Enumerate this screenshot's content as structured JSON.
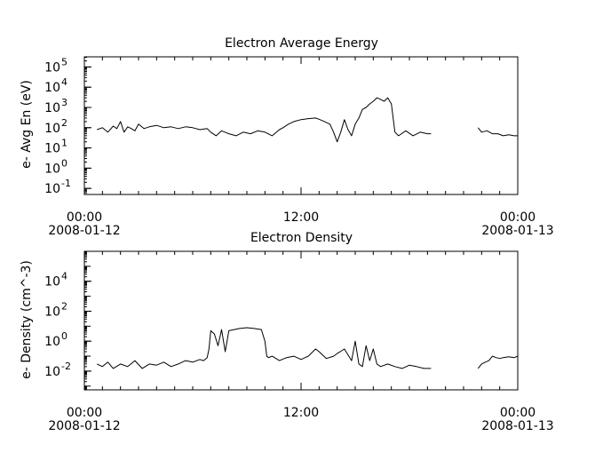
{
  "chart_data": [
    {
      "type": "line",
      "title": "Electron Average Energy",
      "ylabel": "e- Avg En (eV)",
      "xlabel": "",
      "yscale": "log",
      "ylim_exp": [
        -1.3,
        5.5
      ],
      "y_ticks": [
        {
          "exp": -1,
          "label": "10",
          "sup": "-1"
        },
        {
          "exp": 0,
          "label": "10",
          "sup": "0"
        },
        {
          "exp": 1,
          "label": "10",
          "sup": "1"
        },
        {
          "exp": 2,
          "label": "10",
          "sup": "2"
        },
        {
          "exp": 3,
          "label": "10",
          "sup": "3"
        },
        {
          "exp": 4,
          "label": "10",
          "sup": "4"
        },
        {
          "exp": 5,
          "label": "10",
          "sup": "5"
        }
      ],
      "x_ticks": [
        {
          "hour": 0,
          "time": "00:00",
          "date": "2008-01-12"
        },
        {
          "hour": 12,
          "time": "12:00",
          "date": ""
        },
        {
          "hour": 24,
          "time": "00:00",
          "date": "2008-01-13"
        }
      ],
      "xlim_hours": [
        0,
        24
      ],
      "grid": false,
      "series": [
        {
          "color": "#000000",
          "segments": [
            {
              "x": [
                0.7,
                1.0,
                1.3,
                1.6,
                1.8,
                2.0,
                2.2,
                2.4,
                2.6,
                2.8,
                3.0,
                3.3,
                3.6,
                4.0,
                4.4,
                4.8,
                5.2,
                5.6,
                6.0,
                6.4,
                6.8,
                7.0,
                7.3,
                7.6,
                8.0,
                8.4,
                8.8,
                9.2,
                9.6,
                10.0,
                10.4,
                10.8,
                11.0,
                11.3,
                11.6,
                12.0,
                12.4,
                12.8,
                13.0,
                13.3,
                13.6,
                13.8,
                14.0,
                14.2,
                14.4,
                14.6,
                14.8,
                15.0,
                15.2,
                15.4,
                15.6,
                15.8,
                16.0,
                16.2,
                16.4,
                16.6,
                16.8,
                17.0,
                17.2,
                17.4,
                17.8,
                18.2,
                18.6,
                19.0,
                19.2
              ],
              "y": [
                80,
                100,
                60,
                120,
                90,
                200,
                60,
                110,
                90,
                70,
                150,
                90,
                110,
                130,
                100,
                110,
                90,
                110,
                100,
                80,
                90,
                60,
                40,
                70,
                50,
                40,
                60,
                50,
                70,
                60,
                40,
                80,
                100,
                150,
                200,
                250,
                280,
                300,
                260,
                200,
                150,
                60,
                20,
                60,
                250,
                80,
                40,
                150,
                300,
                800,
                1000,
                1500,
                2000,
                3000,
                2500,
                2000,
                3000,
                1500,
                60,
                40,
                70,
                40,
                60,
                50,
                50
              ]
            },
            {
              "x": [
                21.8,
                22.0,
                22.3,
                22.6,
                22.9,
                23.2,
                23.5,
                23.8,
                24.0
              ],
              "y": [
                100,
                60,
                70,
                50,
                50,
                40,
                45,
                40,
                40
              ]
            }
          ]
        }
      ]
    },
    {
      "type": "line",
      "title": "Electron Density",
      "ylabel": "e- Density (cm^-3)",
      "xlabel": "",
      "yscale": "log",
      "ylim_exp": [
        -3.25,
        6.0
      ],
      "y_ticks": [
        {
          "exp": -2,
          "label": "10",
          "sup": "-2"
        },
        {
          "exp": 0,
          "label": "10",
          "sup": "0"
        },
        {
          "exp": 2,
          "label": "10",
          "sup": "2"
        },
        {
          "exp": 4,
          "label": "10",
          "sup": "4"
        }
      ],
      "x_ticks": [
        {
          "hour": 0,
          "time": "00:00",
          "date": "2008-01-12"
        },
        {
          "hour": 12,
          "time": "12:00",
          "date": ""
        },
        {
          "hour": 24,
          "time": "00:00",
          "date": "2008-01-13"
        }
      ],
      "xlim_hours": [
        0,
        24
      ],
      "grid": false,
      "series": [
        {
          "color": "#000000",
          "segments": [
            {
              "x": [
                0.7,
                1.0,
                1.3,
                1.6,
                2.0,
                2.4,
                2.8,
                3.2,
                3.6,
                4.0,
                4.4,
                4.8,
                5.2,
                5.6,
                6.0,
                6.4,
                6.6,
                6.8,
                6.9,
                7.0,
                7.2,
                7.4,
                7.6,
                7.8,
                8.0,
                8.3,
                8.6,
                9.0,
                9.4,
                9.8,
                10.0,
                10.1,
                10.2,
                10.4,
                10.8,
                11.2,
                11.6,
                12.0,
                12.4,
                12.8,
                13.0,
                13.4,
                13.8,
                14.0,
                14.4,
                14.8,
                15.0,
                15.2,
                15.4,
                15.6,
                15.8,
                16.0,
                16.2,
                16.4,
                16.8,
                17.2,
                17.6,
                18.0,
                18.4,
                18.8,
                19.2
              ],
              "y": [
                0.03,
                0.02,
                0.04,
                0.015,
                0.03,
                0.02,
                0.05,
                0.015,
                0.03,
                0.025,
                0.04,
                0.02,
                0.03,
                0.05,
                0.04,
                0.06,
                0.05,
                0.08,
                0.3,
                5,
                3,
                0.5,
                6,
                0.2,
                5,
                6,
                7,
                8,
                7,
                6,
                1,
                0.1,
                0.08,
                0.1,
                0.05,
                0.08,
                0.1,
                0.06,
                0.1,
                0.3,
                0.2,
                0.07,
                0.1,
                0.15,
                0.3,
                0.05,
                1,
                0.03,
                0.02,
                0.5,
                0.05,
                0.3,
                0.03,
                0.02,
                0.03,
                0.02,
                0.015,
                0.025,
                0.02,
                0.015,
                0.015
              ]
            },
            {
              "x": [
                21.8,
                22.0,
                22.2,
                22.4,
                22.6,
                22.8,
                23.0,
                23.2,
                23.5,
                23.8,
                24.0
              ],
              "y": [
                0.015,
                0.03,
                0.04,
                0.05,
                0.1,
                0.08,
                0.07,
                0.08,
                0.09,
                0.08,
                0.1
              ]
            }
          ]
        }
      ]
    }
  ]
}
